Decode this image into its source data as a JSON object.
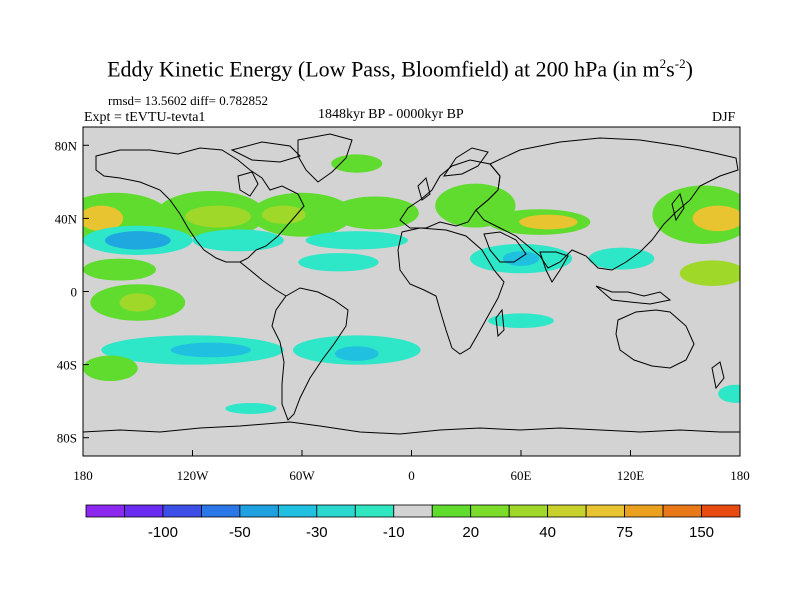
{
  "title": {
    "main": "Eddy Kinetic Energy (Low Pass, Bloomfield) at 200 hPa (in m",
    "sup1": "2",
    "mid": "s",
    "sup2": "-2",
    "end": ")"
  },
  "stats": "rmsd= 13.5602 diff= 0.782852",
  "expt": "Expt = tEVTU-tevta1",
  "period": "1848kyr BP - 0000kyr BP",
  "season": "DJF",
  "map": {
    "projection": "cylindrical-equidistant",
    "lon_range": [
      -180,
      180
    ],
    "lat_range": [
      -90,
      90
    ],
    "background_color": "#d3d3d3",
    "x_ticks": [
      {
        "lon": -180,
        "label": "180"
      },
      {
        "lon": -120,
        "label": "120W"
      },
      {
        "lon": -60,
        "label": "60W"
      },
      {
        "lon": 0,
        "label": "0"
      },
      {
        "lon": 60,
        "label": "60E"
      },
      {
        "lon": 120,
        "label": "120E"
      },
      {
        "lon": 180,
        "label": "180"
      }
    ],
    "y_ticks": [
      {
        "lat": 80,
        "label": "80N"
      },
      {
        "lat": 40,
        "label": "40N"
      },
      {
        "lat": 0,
        "label": "0"
      },
      {
        "lat": -40,
        "label": "40S"
      },
      {
        "lat": -80,
        "label": "80S"
      }
    ],
    "regions": [
      {
        "name": "north-pacific-green",
        "lon": -162,
        "lat": 40,
        "rx": 30,
        "ry": 14,
        "color": "#5fdc2e"
      },
      {
        "name": "north-pacific-yellow",
        "lon": -170,
        "lat": 40,
        "rx": 12,
        "ry": 7,
        "color": "#e8c430"
      },
      {
        "name": "north-america-green",
        "lon": -110,
        "lat": 42,
        "rx": 30,
        "ry": 13,
        "color": "#5fdc2e"
      },
      {
        "name": "north-america-yellow",
        "lon": -106,
        "lat": 41,
        "rx": 18,
        "ry": 6,
        "color": "#a0d82a"
      },
      {
        "name": "north-atlantic-green",
        "lon": -60,
        "lat": 42,
        "rx": 28,
        "ry": 12,
        "color": "#5fdc2e"
      },
      {
        "name": "north-atlantic-yellow",
        "lon": -70,
        "lat": 42,
        "rx": 12,
        "ry": 5,
        "color": "#a0d82a"
      },
      {
        "name": "mid-atlantic-green",
        "lon": -20,
        "lat": 43,
        "rx": 24,
        "ry": 9,
        "color": "#5fdc2e"
      },
      {
        "name": "arctic-green",
        "lon": -30,
        "lat": 70,
        "rx": 14,
        "ry": 5,
        "color": "#5fdc2e"
      },
      {
        "name": "europe-green",
        "lon": 35,
        "lat": 47,
        "rx": 22,
        "ry": 12,
        "color": "#5fdc2e"
      },
      {
        "name": "asia-green",
        "lon": 70,
        "lat": 38,
        "rx": 28,
        "ry": 7,
        "color": "#5fdc2e"
      },
      {
        "name": "asia-yellow",
        "lon": 75,
        "lat": 38,
        "rx": 16,
        "ry": 4,
        "color": "#e8c430"
      },
      {
        "name": "west-pacific-green",
        "lon": 160,
        "lat": 42,
        "rx": 28,
        "ry": 16,
        "color": "#5fdc2e"
      },
      {
        "name": "west-pacific-yellow",
        "lon": 168,
        "lat": 40,
        "rx": 14,
        "ry": 7,
        "color": "#e8c430"
      },
      {
        "name": "north-pacific-cyan",
        "lon": -150,
        "lat": 28,
        "rx": 30,
        "ry": 8,
        "color": "#2ee6c8"
      },
      {
        "name": "north-pacific-blue",
        "lon": -150,
        "lat": 28,
        "rx": 18,
        "ry": 5,
        "color": "#1fa8e0"
      },
      {
        "name": "america-cyan",
        "lon": -95,
        "lat": 28,
        "rx": 25,
        "ry": 6,
        "color": "#2ee6c8"
      },
      {
        "name": "subtropic-cyan",
        "lon": -40,
        "lat": 16,
        "rx": 22,
        "ry": 5,
        "color": "#2ee6c8"
      },
      {
        "name": "atlantic-cyan",
        "lon": -30,
        "lat": 28,
        "rx": 28,
        "ry": 5,
        "color": "#2ee6c8"
      },
      {
        "name": "mideast-cyan",
        "lon": 60,
        "lat": 18,
        "rx": 28,
        "ry": 8,
        "color": "#2ee6c8"
      },
      {
        "name": "mideast-blue",
        "lon": 60,
        "lat": 18,
        "rx": 10,
        "ry": 4,
        "color": "#1fc0e0"
      },
      {
        "name": "east-asia-cyan",
        "lon": 115,
        "lat": 18,
        "rx": 18,
        "ry": 6,
        "color": "#2ee6c8"
      },
      {
        "name": "tropical-pacific-green",
        "lon": -160,
        "lat": 12,
        "rx": 20,
        "ry": 6,
        "color": "#5fdc2e"
      },
      {
        "name": "tropical-pacific-green-2",
        "lon": -150,
        "lat": -6,
        "rx": 26,
        "ry": 10,
        "color": "#5fdc2e"
      },
      {
        "name": "tropical-pacific-yellow",
        "lon": -150,
        "lat": -6,
        "rx": 10,
        "ry": 5,
        "color": "#a0d82a"
      },
      {
        "name": "west-pacific-green-s",
        "lon": 165,
        "lat": 10,
        "rx": 18,
        "ry": 7,
        "color": "#a0d82a"
      },
      {
        "name": "south-pacific-cyan",
        "lon": -120,
        "lat": -32,
        "rx": 50,
        "ry": 8,
        "color": "#2ee6c8"
      },
      {
        "name": "south-pacific-blue",
        "lon": -110,
        "lat": -32,
        "rx": 22,
        "ry": 4,
        "color": "#1fc0e0"
      },
      {
        "name": "south-atlantic-cyan",
        "lon": -30,
        "lat": -32,
        "rx": 35,
        "ry": 8,
        "color": "#2ee6c8"
      },
      {
        "name": "south-atlantic-blue",
        "lon": -30,
        "lat": -34,
        "rx": 12,
        "ry": 4,
        "color": "#1fc0e0"
      },
      {
        "name": "south-pacific-green",
        "lon": -165,
        "lat": -42,
        "rx": 15,
        "ry": 7,
        "color": "#5fdc2e"
      },
      {
        "name": "indian-ocean-cyan",
        "lon": 60,
        "lat": -16,
        "rx": 18,
        "ry": 4,
        "color": "#2ee6c8"
      },
      {
        "name": "south-ocean-cyan",
        "lon": -88,
        "lat": -64,
        "rx": 14,
        "ry": 3,
        "color": "#2ee6c8"
      },
      {
        "name": "south-ocean-cyan-2",
        "lon": 178,
        "lat": -56,
        "rx": 10,
        "ry": 5,
        "color": "#2ee6c8"
      }
    ]
  },
  "colorbar": {
    "colors": [
      "#8c28f0",
      "#6a2cf0",
      "#3c50e8",
      "#2a78e8",
      "#1fa0e0",
      "#1fc0e0",
      "#2ad8d0",
      "#2ee6c0",
      "#d3d3d3",
      "#5fdc2e",
      "#7cdc2a",
      "#a0d82a",
      "#c8d02c",
      "#e8c430",
      "#eca020",
      "#e87818",
      "#e84a10"
    ],
    "labels": [
      {
        "after_box": 2,
        "text": "-100"
      },
      {
        "after_box": 4,
        "text": "-50"
      },
      {
        "after_box": 6,
        "text": "-30"
      },
      {
        "after_box": 8,
        "text": "-10"
      },
      {
        "after_box": 10,
        "text": "20"
      },
      {
        "after_box": 12,
        "text": "40"
      },
      {
        "after_box": 14,
        "text": "75"
      },
      {
        "after_box": 16,
        "text": "150"
      }
    ]
  }
}
